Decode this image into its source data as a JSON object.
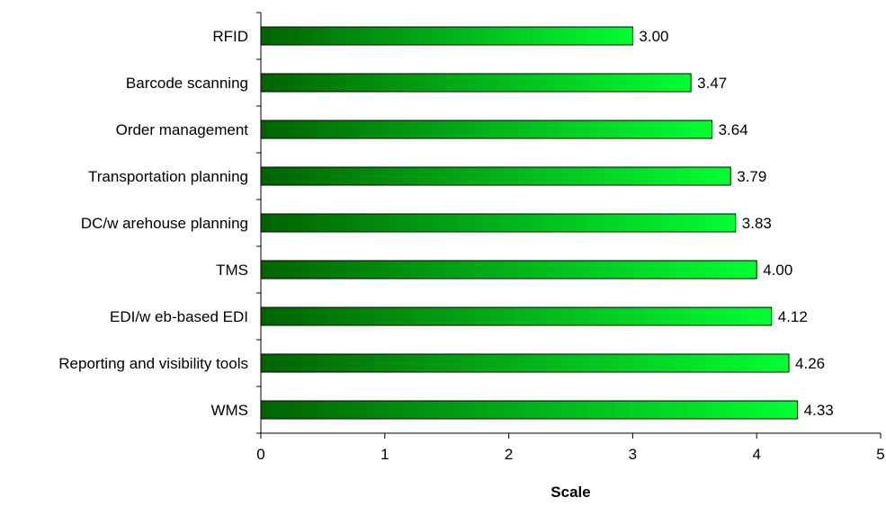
{
  "chart_data": {
    "type": "bar",
    "orientation": "horizontal",
    "categories": [
      "RFID",
      "Barcode scanning",
      "Order management",
      "Transportation planning",
      "DC/w arehouse planning",
      "TMS",
      "EDI/w eb-based EDI",
      "Reporting and visibility tools",
      "WMS"
    ],
    "values": [
      3.0,
      3.47,
      3.64,
      3.79,
      3.83,
      4.0,
      4.12,
      4.26,
      4.33
    ],
    "value_labels": [
      "3.00",
      "3.47",
      "3.64",
      "3.79",
      "3.83",
      "4.00",
      "4.12",
      "4.26",
      "4.33"
    ],
    "title": "",
    "xlabel": "Scale",
    "ylabel": "",
    "xlim": [
      0,
      5
    ],
    "x_ticks": [
      "0",
      "1",
      "2",
      "3",
      "4",
      "5"
    ],
    "grid": false,
    "legend": "none",
    "bar_gradient": [
      "#006400",
      "#00ff33"
    ],
    "bar_stroke": "#000000"
  }
}
